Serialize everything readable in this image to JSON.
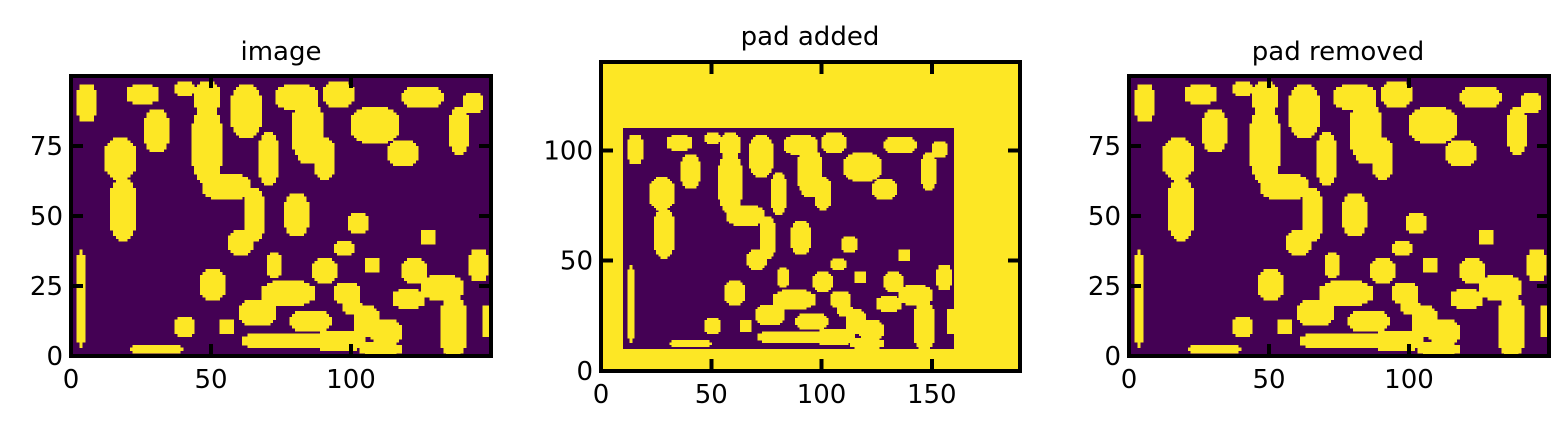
{
  "colors": {
    "background": "#440154",
    "foreground": "#fde725",
    "axes": "#000000"
  },
  "chart_data": [
    {
      "type": "heatmap",
      "title": "image",
      "colormap": "viridis (binary)",
      "xlim": [
        0,
        150
      ],
      "ylim": [
        0,
        100
      ],
      "xticks": [
        0,
        50,
        100
      ],
      "yticks": [
        0,
        25,
        50,
        75
      ],
      "xtick_labels": [
        "0",
        "50",
        "100"
      ],
      "ytick_labels": [
        "0",
        "25",
        "50",
        "75"
      ],
      "grid": false,
      "mask": {
        "blobs": [
          [
            5,
            90,
            4,
            7
          ],
          [
            25,
            93,
            6,
            4
          ],
          [
            30,
            80,
            5,
            8
          ],
          [
            17,
            70,
            6,
            8
          ],
          [
            18,
            52,
            5,
            12
          ],
          [
            40,
            95,
            4,
            3
          ],
          [
            48,
            92,
            5,
            6
          ],
          [
            48,
            75,
            6,
            14
          ],
          [
            55,
            60,
            9,
            5
          ],
          [
            62,
            87,
            6,
            10
          ],
          [
            70,
            70,
            4,
            10
          ],
          [
            80,
            92,
            8,
            5
          ],
          [
            84,
            80,
            6,
            12
          ],
          [
            90,
            70,
            4,
            8
          ],
          [
            95,
            93,
            6,
            5
          ],
          [
            108,
            82,
            9,
            7
          ],
          [
            125,
            92,
            8,
            4
          ],
          [
            118,
            72,
            6,
            5
          ],
          [
            138,
            80,
            4,
            9
          ],
          [
            143,
            90,
            4,
            4
          ],
          [
            65,
            50,
            4,
            10
          ],
          [
            60,
            40,
            5,
            5
          ],
          [
            72,
            32,
            3,
            5
          ],
          [
            80,
            50,
            5,
            8
          ],
          [
            102,
            47,
            4,
            4
          ],
          [
            107,
            32,
            3,
            3
          ],
          [
            127,
            42,
            3,
            3
          ],
          [
            97,
            38,
            4,
            3
          ],
          [
            122,
            30,
            5,
            5
          ],
          [
            132,
            24,
            8,
            5
          ],
          [
            145,
            32,
            4,
            6
          ],
          [
            136,
            10,
            5,
            12
          ],
          [
            148,
            12,
            2,
            6
          ],
          [
            3,
            20,
            2,
            18
          ],
          [
            50,
            25,
            5,
            6
          ],
          [
            55,
            10,
            3,
            3
          ],
          [
            40,
            10,
            4,
            4
          ],
          [
            66,
            15,
            7,
            5
          ],
          [
            77,
            22,
            10,
            5
          ],
          [
            90,
            30,
            5,
            5
          ],
          [
            98,
            22,
            5,
            4
          ],
          [
            85,
            12,
            8,
            4
          ],
          [
            95,
            5,
            10,
            4
          ],
          [
            112,
            8,
            6,
            5
          ],
          [
            105,
            12,
            5,
            6
          ],
          [
            120,
            20,
            6,
            4
          ],
          [
            70,
            5,
            10,
            3
          ],
          [
            100,
            17,
            4,
            3
          ],
          [
            82,
            5,
            6,
            3
          ],
          [
            110,
            2,
            8,
            3
          ],
          [
            30,
            2,
            10,
            2
          ]
        ],
        "nx": 150,
        "ny": 100
      }
    },
    {
      "type": "heatmap",
      "title": "pad added",
      "colormap": "viridis (binary)",
      "xlim": [
        0,
        190
      ],
      "ylim": [
        0,
        140
      ],
      "xticks": [
        0,
        50,
        100,
        150
      ],
      "yticks": [
        0,
        50,
        100
      ],
      "xtick_labels": [
        "0",
        "50",
        "100",
        "150"
      ],
      "ytick_labels": [
        "0",
        "50",
        "100"
      ],
      "grid": false,
      "inner_region": {
        "x": [
          10,
          160
        ],
        "y": [
          10,
          110
        ]
      }
    },
    {
      "type": "heatmap",
      "title": "pad removed",
      "colormap": "viridis (binary)",
      "xlim": [
        0,
        150
      ],
      "ylim": [
        0,
        100
      ],
      "xticks": [
        0,
        50,
        100
      ],
      "yticks": [
        0,
        25,
        50,
        75
      ],
      "xtick_labels": [
        "0",
        "50",
        "100"
      ],
      "ytick_labels": [
        "0",
        "25",
        "50",
        "75"
      ],
      "grid": false
    }
  ]
}
